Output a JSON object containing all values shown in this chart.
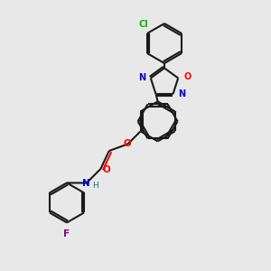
{
  "background_color": "#e8e8e8",
  "bond_color": "#1a1a1a",
  "atom_colors": {
    "O": "#ff0000",
    "N": "#0000cc",
    "Cl": "#00bb00",
    "F": "#880088",
    "C": "#1a1a1a",
    "H": "#008080"
  },
  "figsize": [
    3.0,
    3.0
  ],
  "dpi": 100,
  "bond_lw": 1.5,
  "ring_r": 22,
  "oxad_r": 16
}
